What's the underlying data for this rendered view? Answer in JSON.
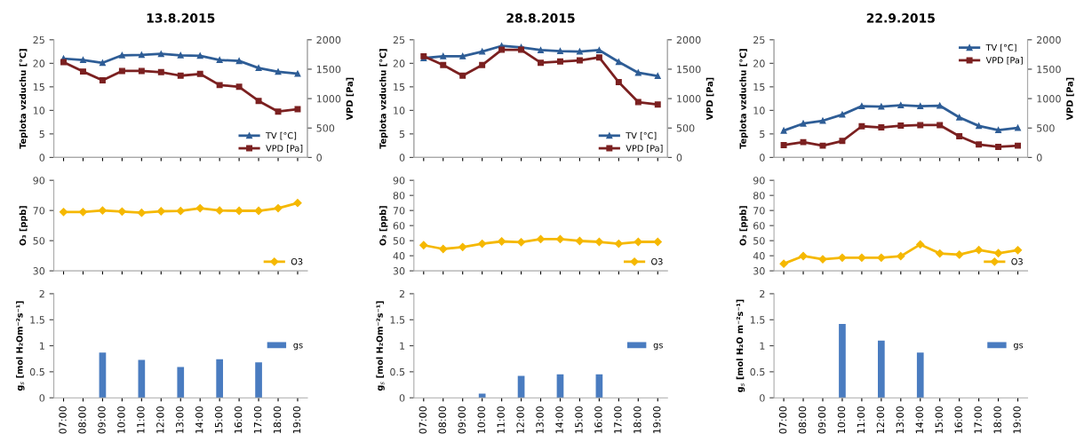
{
  "chart_data": [
    {
      "type": "line",
      "title": "13.8.2015",
      "categories": [
        null,
        null,
        null,
        null,
        null,
        null,
        null,
        null,
        null,
        null,
        null,
        null,
        null
      ],
      "ylabel": "Teplota vzduchu [°C]",
      "y2label": "VPD [Pa]",
      "ylim": [
        0,
        25
      ],
      "yticks": [
        0,
        5,
        10,
        15,
        20,
        25
      ],
      "y2lim": [
        0,
        2000
      ],
      "y2ticks": [
        0,
        500,
        1000,
        1500,
        2000
      ],
      "tick_labels": "y",
      "legend": "bottom right",
      "series": [
        {
          "name": "TV [°C]",
          "color": "#2e5d96",
          "marker": "triangle",
          "values": [
            21,
            20.7,
            20.1,
            21.7,
            21.8,
            22,
            21.7,
            21.6,
            20.7,
            20.5,
            19,
            18.2,
            17.8
          ]
        },
        {
          "name": "VPD [Pa]",
          "color": "#7b2020",
          "marker": "square",
          "axis": "y2",
          "values": [
            1620,
            1460,
            1310,
            1470,
            1470,
            1450,
            1390,
            1420,
            1230,
            1200,
            960,
            780,
            820
          ]
        }
      ]
    },
    {
      "type": "line",
      "title": "28.8.2015",
      "categories": [
        null,
        null,
        null,
        null,
        null,
        null,
        null,
        null,
        null,
        null,
        null,
        null,
        null
      ],
      "ylabel": "Teplota vzduchu [°C]",
      "y2label": "VPD [Pa]",
      "ylim": [
        0,
        25
      ],
      "yticks": [
        0,
        5,
        10,
        15,
        20,
        25
      ],
      "y2lim": [
        0,
        2000
      ],
      "y2ticks": [
        0,
        500,
        1000,
        1500,
        2000
      ],
      "tick_labels": "y",
      "legend": "bottom right",
      "series": [
        {
          "name": "TV [°C]",
          "color": "#2e5d96",
          "marker": "triangle",
          "values": [
            21.1,
            21.5,
            21.5,
            22.5,
            23.7,
            23.4,
            22.8,
            22.6,
            22.5,
            22.8,
            20.3,
            18,
            17.3
          ]
        },
        {
          "name": "VPD [Pa]",
          "color": "#7b2020",
          "marker": "square",
          "axis": "y2",
          "values": [
            1720,
            1570,
            1390,
            1570,
            1830,
            1830,
            1610,
            1630,
            1650,
            1700,
            1280,
            940,
            900
          ]
        }
      ]
    },
    {
      "type": "line",
      "title": "22.9.2015",
      "categories": [
        null,
        null,
        null,
        null,
        null,
        null,
        null,
        null,
        null,
        null,
        null,
        null,
        null
      ],
      "ylabel": "Teplota vzduchu [°C]",
      "y2label": "VPD [Pa]",
      "ylim": [
        0,
        25
      ],
      "yticks": [
        0,
        5,
        10,
        15,
        20,
        25
      ],
      "y2lim": [
        0,
        2000
      ],
      "y2ticks": [
        0,
        500,
        1000,
        1500,
        2000
      ],
      "tick_labels": "y",
      "legend": "top right",
      "series": [
        {
          "name": "TV [°C]",
          "color": "#2e5d96",
          "marker": "triangle",
          "values": [
            5.7,
            7.2,
            7.8,
            9.1,
            10.9,
            10.8,
            11.1,
            10.9,
            11,
            8.5,
            6.7,
            5.8,
            6.3
          ]
        },
        {
          "name": "VPD [Pa]",
          "color": "#7b2020",
          "marker": "square",
          "axis": "y2",
          "values": [
            210,
            260,
            200,
            280,
            530,
            510,
            540,
            550,
            550,
            360,
            220,
            180,
            200
          ]
        }
      ]
    },
    {
      "type": "line",
      "categories": [
        null,
        null,
        null,
        null,
        null,
        null,
        null,
        null,
        null,
        null,
        null,
        null,
        null
      ],
      "ylabel": "O₃ [ppb]",
      "ylim": [
        30,
        90
      ],
      "yticks": [
        30,
        50,
        70,
        90
      ],
      "tick_labels": "y",
      "legend": "bottom right",
      "series": [
        {
          "name": "O3",
          "color": "#f5b800",
          "marker": "diamond",
          "values": [
            69,
            69,
            70,
            69.3,
            68.5,
            69.5,
            69.7,
            71.5,
            70,
            69.8,
            69.8,
            71.5,
            75
          ]
        }
      ]
    },
    {
      "type": "line",
      "categories": [
        null,
        null,
        null,
        null,
        null,
        null,
        null,
        null,
        null,
        null,
        null,
        null,
        null
      ],
      "ylabel": "O₃ [ppb]",
      "ylim": [
        30,
        90
      ],
      "yticks": [
        30,
        40,
        50,
        60,
        70,
        80,
        90
      ],
      "tick_labels": "y",
      "legend": "bottom right",
      "series": [
        {
          "name": "O3",
          "color": "#f5b800",
          "marker": "diamond",
          "values": [
            47,
            44.5,
            45.8,
            48,
            49.5,
            49,
            51,
            51,
            49.8,
            49.2,
            48,
            49.2,
            49.2
          ]
        }
      ]
    },
    {
      "type": "line",
      "categories": [
        null,
        null,
        null,
        null,
        null,
        null,
        null,
        null,
        null,
        null,
        null,
        null,
        null
      ],
      "ylabel": "O₃ [ppb]",
      "ylim": [
        30,
        90
      ],
      "yticks": [
        30,
        40,
        50,
        60,
        70,
        80,
        90
      ],
      "tick_labels": "y",
      "legend": "bottom right",
      "series": [
        {
          "name": "O3",
          "color": "#f5b800",
          "marker": "diamond",
          "values": [
            34.7,
            39.8,
            37.7,
            38.7,
            38.7,
            38.7,
            39.7,
            47.5,
            41.5,
            40.7,
            43.8,
            41.7,
            43.7
          ]
        }
      ]
    },
    {
      "type": "bar",
      "categories": [
        "07:00",
        "08:00",
        "09:00",
        "10:00",
        "11:00",
        "12:00",
        "13:00",
        "14:00",
        "15:00",
        "16:00",
        "17:00",
        "18:00",
        "19:00"
      ],
      "ylabel": "g$_{s}$ [mol H₂Om⁻²s⁻¹]",
      "ylim": [
        0,
        2
      ],
      "yticks": [
        0,
        0.5,
        1,
        1.5,
        2
      ],
      "legend": "right",
      "series": [
        {
          "name": "gs",
          "color": "#4a7cc0",
          "values": [
            null,
            null,
            0.87,
            null,
            0.73,
            null,
            0.59,
            null,
            0.74,
            null,
            0.68,
            null,
            null
          ]
        }
      ]
    },
    {
      "type": "bar",
      "categories": [
        "07:00",
        "08:00",
        "09:00",
        "10:00",
        "11:00",
        "12:00",
        "13:00",
        "14:00",
        "15:00",
        "16:00",
        "17:00",
        "18:00",
        "19:00"
      ],
      "ylabel": "g$_{s}$ [mol H₂Om⁻²s⁻¹]",
      "ylim": [
        0,
        2
      ],
      "yticks": [
        0,
        0.5,
        1,
        1.5,
        2
      ],
      "legend": "right",
      "series": [
        {
          "name": "gs",
          "color": "#4a7cc0",
          "values": [
            null,
            null,
            null,
            0.08,
            null,
            0.42,
            null,
            0.45,
            null,
            0.45,
            null,
            null,
            null
          ]
        }
      ]
    },
    {
      "type": "bar",
      "categories": [
        "07:00",
        "08:00",
        "09:00",
        "10:00",
        "11:00",
        "12:00",
        "13:00",
        "14:00",
        "15:00",
        "16:00",
        "17:00",
        "18:00",
        "19:00"
      ],
      "ylabel": "g$_{s}$ [mol H₂O m⁻²s⁻¹]",
      "ylim": [
        0,
        2
      ],
      "yticks": [
        0,
        0.5,
        1,
        1.5,
        2
      ],
      "legend": "right",
      "series": [
        {
          "name": "gs",
          "color": "#4a7cc0",
          "values": [
            null,
            null,
            null,
            1.42,
            null,
            1.1,
            null,
            0.87,
            null,
            null,
            null,
            null,
            null
          ]
        }
      ]
    }
  ]
}
